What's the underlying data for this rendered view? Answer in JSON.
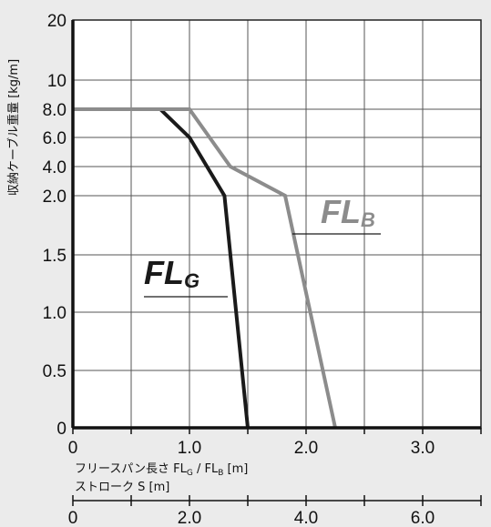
{
  "chart_data": {
    "type": "line",
    "title": "",
    "ylabel": "収納ケーブル重量 [kg/m]",
    "xlabel_parts": [
      "フリースパン長さ FL",
      "G",
      " / FL",
      "B",
      " [m]"
    ],
    "x2label": "ストローク S [m]",
    "xlim": [
      0,
      3.5
    ],
    "x_ticks": [
      0,
      1.0,
      2.0,
      3.0
    ],
    "x_tick_labels": [
      "0",
      "1.0",
      "2.0",
      "3.0"
    ],
    "x2_ticks": [
      0,
      2.0,
      4.0,
      6.0
    ],
    "x2_tick_labels": [
      "0",
      "2.0",
      "4.0",
      "6.0"
    ],
    "y_scale": "nonlinear",
    "y_ticks": [
      0,
      0.5,
      1.0,
      1.5,
      2.0,
      4.0,
      6.0,
      8.0,
      10,
      20
    ],
    "y_tick_labels": [
      "0",
      "0.5",
      "1.0",
      "1.5",
      "2.0",
      "4.0",
      "6.0",
      "8.0",
      "10",
      "20"
    ],
    "grid": true,
    "series": [
      {
        "name_main": "FL",
        "name_sub": "G",
        "color": "#1a1a1a",
        "points": [
          [
            0,
            8.0
          ],
          [
            0.75,
            8.0
          ],
          [
            1.0,
            6.0
          ],
          [
            1.3,
            2.0
          ],
          [
            1.5,
            0
          ]
        ]
      },
      {
        "name_main": "FL",
        "name_sub": "B",
        "color": "#8c8c8c",
        "points": [
          [
            0,
            8.0
          ],
          [
            1.0,
            8.0
          ],
          [
            1.35,
            4.0
          ],
          [
            1.82,
            2.0
          ],
          [
            2.25,
            0
          ]
        ]
      }
    ]
  }
}
